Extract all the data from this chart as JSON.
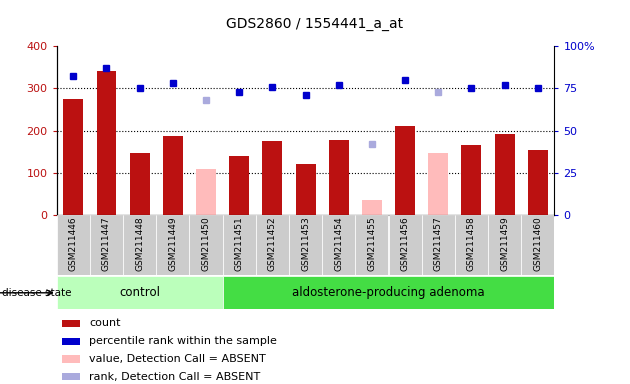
{
  "title": "GDS2860 / 1554441_a_at",
  "samples": [
    "GSM211446",
    "GSM211447",
    "GSM211448",
    "GSM211449",
    "GSM211450",
    "GSM211451",
    "GSM211452",
    "GSM211453",
    "GSM211454",
    "GSM211455",
    "GSM211456",
    "GSM211457",
    "GSM211458",
    "GSM211459",
    "GSM211460"
  ],
  "count_values": [
    275,
    340,
    148,
    187,
    null,
    140,
    175,
    122,
    177,
    null,
    210,
    null,
    165,
    192,
    155
  ],
  "absent_value_bars": [
    null,
    null,
    null,
    null,
    110,
    null,
    null,
    null,
    null,
    35,
    null,
    147,
    null,
    null,
    null
  ],
  "percentile_rank": [
    82,
    87,
    75,
    78,
    null,
    73,
    76,
    71,
    77,
    null,
    80,
    null,
    75,
    77,
    75
  ],
  "absent_rank_dots": [
    null,
    null,
    null,
    null,
    68,
    null,
    null,
    null,
    null,
    42,
    null,
    73,
    null,
    null,
    null
  ],
  "control_count": 5,
  "adenoma_count": 10,
  "control_label": "control",
  "adenoma_label": "aldosterone-producing adenoma",
  "disease_state_label": "disease state",
  "ylim_left": [
    0,
    400
  ],
  "ylim_right": [
    0,
    100
  ],
  "yticks_left": [
    0,
    100,
    200,
    300,
    400
  ],
  "yticks_right": [
    0,
    25,
    50,
    75,
    100
  ],
  "ylabel_right_labels": [
    "0",
    "25",
    "50",
    "75",
    "100%"
  ],
  "bar_color_present": "#bb1111",
  "bar_color_absent": "#ffbbbb",
  "dot_color_present": "#0000cc",
  "dot_color_absent": "#aaaadd",
  "control_bg": "#bbffbb",
  "adenoma_bg": "#44dd44",
  "xticklabel_bg": "#cccccc",
  "grid_dotted_color": "black",
  "grid_levels": [
    100,
    200,
    300
  ],
  "legend_items": [
    "count",
    "percentile rank within the sample",
    "value, Detection Call = ABSENT",
    "rank, Detection Call = ABSENT"
  ],
  "legend_colors": [
    "#bb1111",
    "#0000cc",
    "#ffbbbb",
    "#aaaadd"
  ]
}
